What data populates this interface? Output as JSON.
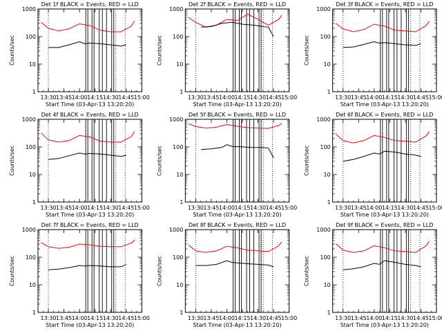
{
  "window": {
    "title": ""
  },
  "chart_data": [
    {
      "type": "line",
      "title": "Det 1f BLACK = Events, RED = LLD",
      "xlabel": "Start Time (03-Apr-13 13:20:20)",
      "ylabel": "Counts/sec",
      "yscale": "log",
      "ylim": [
        1,
        1000
      ],
      "xlim": [
        "13:20",
        "15:00"
      ],
      "xticks": [
        "13:30",
        "13:45",
        "14:00",
        "14:15",
        "14:30",
        "14:45",
        "15:00"
      ],
      "yticks": [
        "1",
        "10",
        "100",
        "1000"
      ],
      "dotted_vlines": [
        "13:30",
        "14:35",
        "14:44"
      ],
      "solid_vlines": [
        "14:06",
        "14:08",
        "14:12",
        "14:14",
        "14:19",
        "14:22",
        "14:26",
        "14:31",
        "14:33"
      ],
      "series": [
        {
          "color": "#ff0000",
          "x": [
            "13:23",
            "13:30",
            "13:40",
            "13:50",
            "14:00",
            "14:10",
            "14:20",
            "14:30",
            "14:40",
            "14:50",
            "14:53"
          ],
          "y": [
            330,
            200,
            160,
            190,
            290,
            250,
            170,
            150,
            150,
            240,
            370
          ]
        },
        {
          "color": "#000000",
          "x": [
            "13:30",
            "13:40",
            "13:50",
            "14:00",
            "14:05",
            "14:10",
            "14:20",
            "14:30",
            "14:40",
            "14:45"
          ],
          "y": [
            40,
            40,
            50,
            65,
            55,
            58,
            55,
            50,
            45,
            50
          ]
        }
      ]
    },
    {
      "type": "line",
      "title": "Det 2f BLACK = Events, RED = LLD",
      "xlabel": "Start Time (03-Apr-13 13:20:20)",
      "ylabel": "Counts/sec",
      "yscale": "log",
      "ylim": [
        1,
        1000
      ],
      "xlim": [
        "13:20",
        "15:00"
      ],
      "xticks": [
        "13:30",
        "13:45",
        "14:00",
        "14:15",
        "14:30",
        "14:45",
        "15:00"
      ],
      "yticks": [
        "1",
        "10",
        "100",
        "1000"
      ],
      "dotted_vlines": [
        "13:30",
        "14:35",
        "14:44"
      ],
      "solid_vlines": [
        "14:06",
        "14:08",
        "14:12",
        "14:14",
        "14:19",
        "14:22",
        "14:26",
        "14:31",
        "14:33"
      ],
      "series": [
        {
          "color": "#ff0000",
          "x": [
            "13:23",
            "13:30",
            "13:40",
            "13:50",
            "14:00",
            "14:10",
            "14:20",
            "14:30",
            "14:40",
            "14:50",
            "14:53"
          ],
          "y": [
            500,
            330,
            220,
            260,
            420,
            380,
            650,
            420,
            260,
            420,
            600
          ]
        },
        {
          "color": "#000000",
          "x": [
            "13:35",
            "13:45",
            "13:55",
            "14:05",
            "14:15",
            "14:25",
            "14:35",
            "14:40",
            "14:45"
          ],
          "y": [
            220,
            230,
            300,
            330,
            280,
            260,
            230,
            220,
            100
          ]
        }
      ]
    },
    {
      "type": "line",
      "title": "Det 3f BLACK = Events, RED = LLD",
      "xlabel": "Start Time (03-Apr-13 13:20:20)",
      "ylabel": "Counts/sec",
      "yscale": "log",
      "ylim": [
        1,
        1000
      ],
      "xlim": [
        "13:20",
        "15:00"
      ],
      "xticks": [
        "13:30",
        "13:45",
        "14:00",
        "14:15",
        "14:30",
        "14:45",
        "15:00"
      ],
      "yticks": [
        "1",
        "10",
        "100",
        "1000"
      ],
      "dotted_vlines": [
        "13:30",
        "14:35",
        "14:44"
      ],
      "solid_vlines": [
        "14:06",
        "14:08",
        "14:12",
        "14:14",
        "14:19",
        "14:22",
        "14:26",
        "14:31",
        "14:33"
      ],
      "series": [
        {
          "color": "#ff0000",
          "x": [
            "13:23",
            "13:30",
            "13:40",
            "13:50",
            "14:00",
            "14:10",
            "14:20",
            "14:30",
            "14:40",
            "14:50",
            "14:53"
          ],
          "y": [
            300,
            190,
            150,
            180,
            280,
            240,
            170,
            160,
            150,
            250,
            360
          ]
        },
        {
          "color": "#000000",
          "x": [
            "13:30",
            "13:40",
            "13:50",
            "14:00",
            "14:05",
            "14:10",
            "14:20",
            "14:30",
            "14:40",
            "14:45"
          ],
          "y": [
            40,
            42,
            52,
            65,
            58,
            60,
            55,
            50,
            48,
            55
          ]
        }
      ]
    },
    {
      "type": "line",
      "title": "Det 4f BLACK = Events, RED = LLD",
      "xlabel": "Start Time (03-Apr-13 13:20:20)",
      "ylabel": "Counts/sec",
      "yscale": "log",
      "ylim": [
        1,
        1000
      ],
      "xlim": [
        "13:20",
        "15:00"
      ],
      "xticks": [
        "13:30",
        "13:45",
        "14:00",
        "14:15",
        "14:30",
        "14:45",
        "15:00"
      ],
      "yticks": [
        "1",
        "10",
        "100",
        "1000"
      ],
      "dotted_vlines": [
        "13:30",
        "14:35",
        "14:44"
      ],
      "solid_vlines": [
        "14:06",
        "14:08",
        "14:12",
        "14:14",
        "14:19",
        "14:22",
        "14:26",
        "14:31",
        "14:33"
      ],
      "series": [
        {
          "color": "#ff0000",
          "x": [
            "13:23",
            "13:30",
            "13:40",
            "13:50",
            "14:00",
            "14:10",
            "14:20",
            "14:30",
            "14:40",
            "14:50",
            "14:53"
          ],
          "y": [
            320,
            180,
            150,
            170,
            260,
            230,
            160,
            150,
            150,
            240,
            360
          ]
        },
        {
          "color": "#000000",
          "x": [
            "13:30",
            "13:40",
            "13:50",
            "14:00",
            "14:05",
            "14:10",
            "14:20",
            "14:30",
            "14:40",
            "14:45"
          ],
          "y": [
            35,
            38,
            48,
            60,
            55,
            58,
            55,
            50,
            45,
            50
          ]
        }
      ]
    },
    {
      "type": "line",
      "title": "Det 5f BLACK = Events, RED = LLD",
      "xlabel": "Start Time (03-Apr-13 13:20:20)",
      "ylabel": "Counts/sec",
      "yscale": "log",
      "ylim": [
        1,
        1000
      ],
      "xlim": [
        "13:20",
        "15:00"
      ],
      "xticks": [
        "13:30",
        "13:45",
        "14:00",
        "14:15",
        "14:30",
        "14:45",
        "15:00"
      ],
      "yticks": [
        "1",
        "10",
        "100",
        "1000"
      ],
      "dotted_vlines": [
        "13:30",
        "14:35",
        "14:44"
      ],
      "solid_vlines": [
        "14:06",
        "14:08",
        "14:12",
        "14:14",
        "14:19",
        "14:22",
        "14:26",
        "14:31",
        "14:33"
      ],
      "series": [
        {
          "color": "#ff0000",
          "x": [
            "13:23",
            "13:30",
            "13:40",
            "13:50",
            "14:00",
            "14:10",
            "14:20",
            "14:30",
            "14:40",
            "14:50",
            "14:53"
          ],
          "y": [
            700,
            550,
            480,
            520,
            650,
            560,
            500,
            480,
            470,
            600,
            720
          ]
        },
        {
          "color": "#000000",
          "x": [
            "13:35",
            "13:45",
            "13:55",
            "14:00",
            "14:05",
            "14:15",
            "14:25",
            "14:35",
            "14:40",
            "14:45"
          ],
          "y": [
            80,
            85,
            95,
            120,
            105,
            100,
            95,
            95,
            90,
            40
          ]
        }
      ]
    },
    {
      "type": "line",
      "title": "Det 6f BLACK = Events, RED = LLD",
      "xlabel": "Start Time (03-Apr-13 13:20:20)",
      "ylabel": "Counts/sec",
      "yscale": "log",
      "ylim": [
        1,
        1000
      ],
      "xlim": [
        "13:20",
        "15:00"
      ],
      "xticks": [
        "13:30",
        "13:45",
        "14:00",
        "14:15",
        "14:30",
        "14:45",
        "15:00"
      ],
      "yticks": [
        "1",
        "10",
        "100",
        "1000"
      ],
      "dotted_vlines": [
        "13:30",
        "14:35",
        "14:44"
      ],
      "solid_vlines": [
        "14:06",
        "14:08",
        "14:12",
        "14:14",
        "14:19",
        "14:22",
        "14:26",
        "14:31",
        "14:33"
      ],
      "series": [
        {
          "color": "#ff0000",
          "x": [
            "13:23",
            "13:30",
            "13:40",
            "13:50",
            "14:00",
            "14:10",
            "14:20",
            "14:30",
            "14:40",
            "14:50",
            "14:53"
          ],
          "y": [
            300,
            170,
            140,
            170,
            260,
            220,
            170,
            160,
            150,
            250,
            360
          ]
        },
        {
          "color": "#000000",
          "x": [
            "13:30",
            "13:40",
            "13:50",
            "14:00",
            "14:05",
            "14:10",
            "14:20",
            "14:30",
            "14:40",
            "14:45"
          ],
          "y": [
            30,
            35,
            45,
            60,
            55,
            70,
            65,
            55,
            50,
            45
          ]
        }
      ]
    },
    {
      "type": "line",
      "title": "Det 7f BLACK = Events, RED = LLD",
      "xlabel": "Start Time (03-Apr-13 13:20:20)",
      "ylabel": "Counts/sec",
      "yscale": "log",
      "ylim": [
        1,
        1000
      ],
      "xlim": [
        "13:20",
        "15:00"
      ],
      "xticks": [
        "13:30",
        "13:45",
        "14:00",
        "14:15",
        "14:30",
        "14:45",
        "15:00"
      ],
      "yticks": [
        "1",
        "10",
        "100",
        "1000"
      ],
      "dotted_vlines": [
        "13:30",
        "14:35",
        "14:44"
      ],
      "solid_vlines": [
        "14:06",
        "14:08",
        "14:12",
        "14:14",
        "14:19",
        "14:22",
        "14:26",
        "14:31",
        "14:33"
      ],
      "series": [
        {
          "color": "#ff0000",
          "x": [
            "13:23",
            "13:30",
            "13:40",
            "13:50",
            "14:00",
            "14:10",
            "14:20",
            "14:30",
            "14:40",
            "14:50",
            "14:53"
          ],
          "y": [
            340,
            240,
            210,
            230,
            300,
            280,
            250,
            240,
            240,
            330,
            420
          ]
        },
        {
          "color": "#000000",
          "x": [
            "13:30",
            "13:40",
            "13:50",
            "14:00",
            "14:05",
            "14:10",
            "14:20",
            "14:30",
            "14:40",
            "14:45"
          ],
          "y": [
            35,
            37,
            42,
            50,
            48,
            50,
            48,
            45,
            45,
            55
          ]
        }
      ]
    },
    {
      "type": "line",
      "title": "Det 8f BLACK = Events, RED = LLD",
      "xlabel": "Start Time (03-Apr-13 13:20:20)",
      "ylabel": "Counts/sec",
      "yscale": "log",
      "ylim": [
        1,
        1000
      ],
      "xlim": [
        "13:20",
        "15:00"
      ],
      "xticks": [
        "13:30",
        "13:45",
        "14:00",
        "14:15",
        "14:30",
        "14:45",
        "15:00"
      ],
      "yticks": [
        "1",
        "10",
        "100",
        "1000"
      ],
      "dotted_vlines": [
        "13:30",
        "14:35",
        "14:44"
      ],
      "solid_vlines": [
        "14:06",
        "14:08",
        "14:12",
        "14:14",
        "14:19",
        "14:22",
        "14:26",
        "14:31",
        "14:33"
      ],
      "series": [
        {
          "color": "#ff0000",
          "x": [
            "13:23",
            "13:30",
            "13:40",
            "13:50",
            "14:00",
            "14:10",
            "14:20",
            "14:30",
            "14:40",
            "14:50",
            "14:53"
          ],
          "y": [
            280,
            170,
            150,
            170,
            250,
            220,
            180,
            170,
            160,
            260,
            360
          ]
        },
        {
          "color": "#000000",
          "x": [
            "13:30",
            "13:40",
            "13:50",
            "14:00",
            "14:05",
            "14:10",
            "14:20",
            "14:30",
            "14:40",
            "14:45"
          ],
          "y": [
            50,
            50,
            55,
            75,
            65,
            62,
            58,
            55,
            52,
            45
          ]
        }
      ]
    },
    {
      "type": "line",
      "title": "Det 9f BLACK = Events, RED = LLD",
      "xlabel": "Start Time (03-Apr-13 13:20:20)",
      "ylabel": "Counts/sec",
      "yscale": "log",
      "ylim": [
        1,
        1000
      ],
      "xlim": [
        "13:20",
        "15:00"
      ],
      "xticks": [
        "13:30",
        "13:45",
        "14:00",
        "14:15",
        "14:30",
        "14:45",
        "15:00"
      ],
      "yticks": [
        "1",
        "10",
        "100",
        "1000"
      ],
      "dotted_vlines": [
        "13:30",
        "14:35",
        "14:44"
      ],
      "solid_vlines": [
        "14:06",
        "14:08",
        "14:12",
        "14:14",
        "14:19",
        "14:22",
        "14:26",
        "14:31",
        "14:33"
      ],
      "series": [
        {
          "color": "#ff0000",
          "x": [
            "13:23",
            "13:30",
            "13:40",
            "13:50",
            "14:00",
            "14:10",
            "14:20",
            "14:30",
            "14:40",
            "14:50",
            "14:53"
          ],
          "y": [
            310,
            180,
            150,
            170,
            260,
            220,
            170,
            160,
            150,
            260,
            380
          ]
        },
        {
          "color": "#000000",
          "x": [
            "13:30",
            "13:40",
            "13:50",
            "14:00",
            "14:05",
            "14:10",
            "14:20",
            "14:30",
            "14:40",
            "14:45"
          ],
          "y": [
            35,
            38,
            45,
            60,
            55,
            75,
            65,
            55,
            50,
            45
          ]
        }
      ]
    }
  ]
}
